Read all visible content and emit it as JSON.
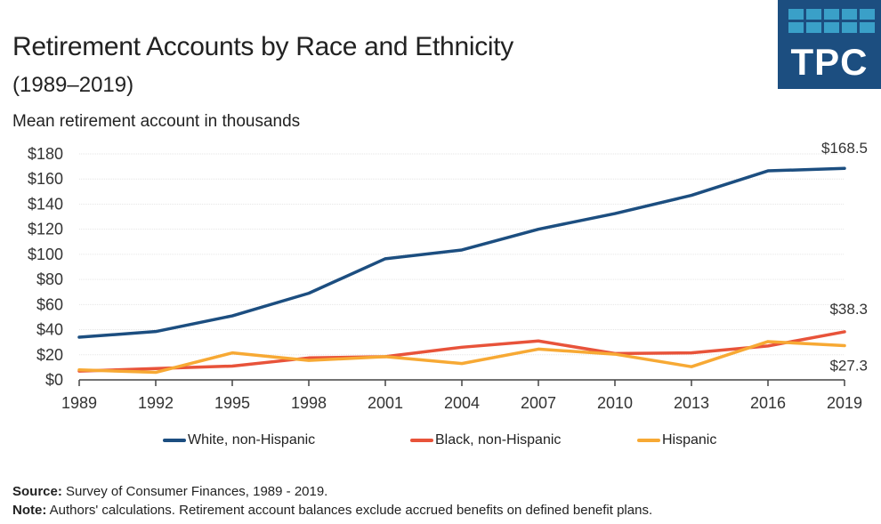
{
  "header": {
    "title": "Retirement Accounts by Race and Ethnicity",
    "subtitle": "(1989–2019)",
    "units": "Mean retirement account in thousands",
    "logo_text": "TPC"
  },
  "colors": {
    "white_series": "#1c4e80",
    "black_series": "#e8533a",
    "hispanic_series": "#f7a934",
    "logo_bg": "#1c4e80",
    "logo_cells": "#3aa0c8",
    "grid": "#e6e6e6",
    "axis": "#444444"
  },
  "chart_data": {
    "type": "line",
    "title": "Retirement Accounts by Race and Ethnicity",
    "subtitle": "(1989–2019)",
    "xlabel": "",
    "ylabel": "Mean retirement account in thousands",
    "x": [
      1989,
      1992,
      1995,
      1998,
      2001,
      2004,
      2007,
      2010,
      2013,
      2016,
      2019
    ],
    "categories": [
      "1989",
      "1992",
      "1995",
      "1998",
      "2001",
      "2004",
      "2007",
      "2010",
      "2013",
      "2016",
      "2019"
    ],
    "ylim": [
      0,
      180
    ],
    "yticks": [
      0,
      20,
      40,
      60,
      80,
      100,
      120,
      140,
      160,
      180
    ],
    "ytick_labels": [
      "$0",
      "$20",
      "$40",
      "$60",
      "$80",
      "$100",
      "$120",
      "$140",
      "$160",
      "$180"
    ],
    "grid": true,
    "legend_position": "bottom-center",
    "series": [
      {
        "name": "White, non-Hispanic",
        "color": "#1c4e80",
        "values": [
          34,
          38.5,
          51,
          69,
          96.5,
          103.5,
          120,
          132.5,
          147,
          166.5,
          168.5
        ]
      },
      {
        "name": "Black, non-Hispanic",
        "color": "#e8533a",
        "values": [
          7,
          9,
          11,
          17.5,
          18.5,
          26,
          31,
          21,
          21.5,
          27,
          38.3
        ]
      },
      {
        "name": "Hispanic",
        "color": "#f7a934",
        "values": [
          8,
          6,
          21.5,
          15.5,
          18.5,
          13,
          24.5,
          20.5,
          10.5,
          30.5,
          27.3
        ]
      }
    ],
    "annotations": [
      {
        "text": "$168.5",
        "series": "White, non-Hispanic",
        "x": 2019,
        "y": 168.5
      },
      {
        "text": "$38.3",
        "series": "Black, non-Hispanic",
        "x": 2019,
        "y": 38.3
      },
      {
        "text": "$27.3",
        "series": "Hispanic",
        "x": 2019,
        "y": 27.3
      }
    ]
  },
  "footer": {
    "source_label": "Source:",
    "source_text": " Survey of Consumer Finances, 1989 - 2019.",
    "note_label": "Note:",
    "note_text": " Authors' calculations. Retirement account balances exclude accrued benefits on defined benefit plans."
  }
}
